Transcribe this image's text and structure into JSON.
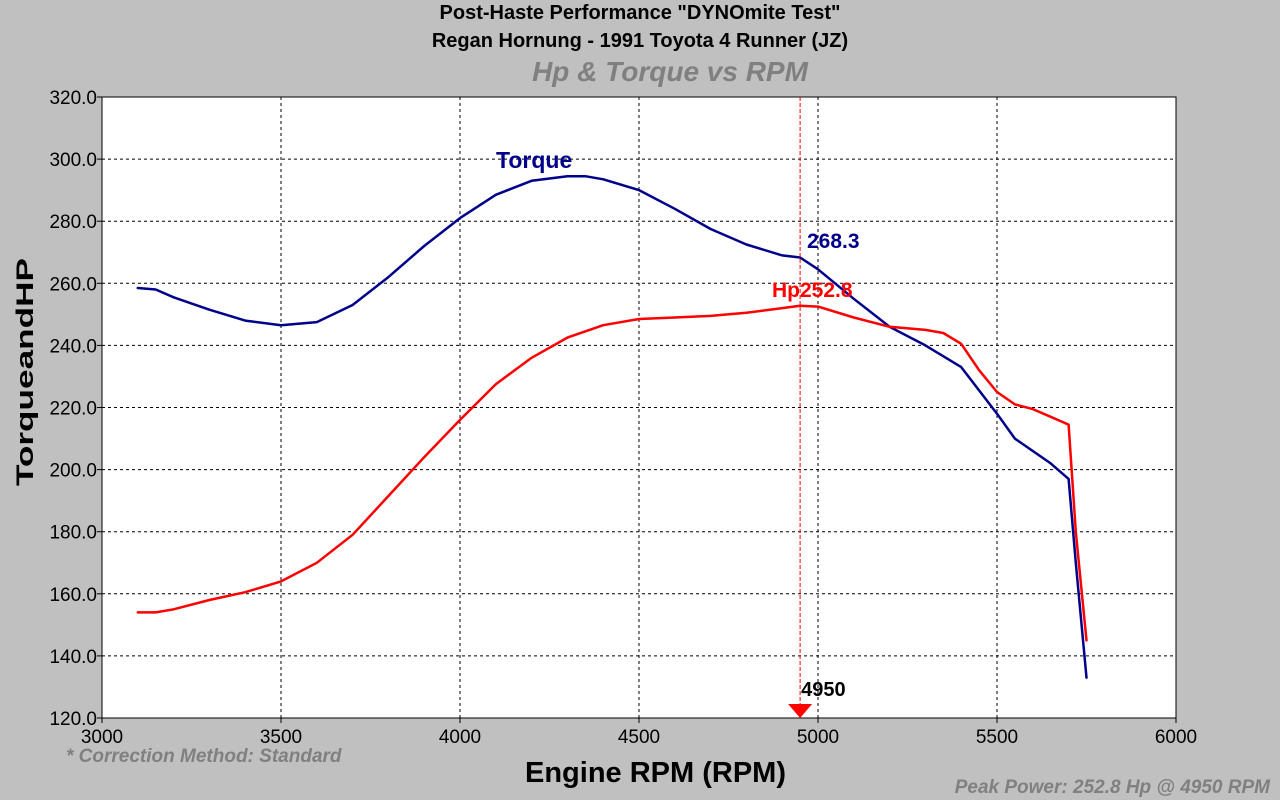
{
  "header": {
    "title": "Post-Haste Performance \"DYNOmite Test\"",
    "subtitle_line": "Regan Hornung - 1991 Toyota 4 Runner (JZ)",
    "chart_title": "Hp & Torque vs RPM"
  },
  "footer": {
    "correction": "* Correction Method: Standard",
    "peak": "Peak Power: 252.8 Hp @ 4950 RPM"
  },
  "colors": {
    "torque": "#00008b",
    "hp": "#ff0000",
    "marker": "#ff0000",
    "grid": "#000000",
    "plot_bg": "#ffffff",
    "page_bg": "#c0c0c0"
  },
  "chart_data": {
    "type": "line",
    "xlabel": "Engine RPM (RPM)",
    "ylabel": "TorqueandHP",
    "xlim": [
      3000,
      6000
    ],
    "ylim": [
      120,
      320
    ],
    "xticks": [
      "3000",
      "3500",
      "4000",
      "4500",
      "5000",
      "5500",
      "6000"
    ],
    "yticks": [
      "120.0",
      "140.0",
      "160.0",
      "180.0",
      "200.0",
      "220.0",
      "240.0",
      "260.0",
      "280.0",
      "300.0",
      "320.0"
    ],
    "grid": true,
    "series": [
      {
        "name": "Torque",
        "label": "Torque",
        "x": [
          3100,
          3150,
          3200,
          3300,
          3400,
          3500,
          3600,
          3700,
          3800,
          3900,
          4000,
          4100,
          4200,
          4300,
          4350,
          4400,
          4500,
          4600,
          4700,
          4800,
          4900,
          4950,
          5000,
          5100,
          5200,
          5300,
          5400,
          5500,
          5550,
          5600,
          5650,
          5700,
          5720,
          5750
        ],
        "y": [
          258.5,
          258,
          255.5,
          251.5,
          248,
          246.5,
          247.5,
          253,
          262,
          272,
          281,
          288.5,
          293,
          294.5,
          294.5,
          293.5,
          290,
          284,
          277.5,
          272.5,
          269,
          268.3,
          264.5,
          255,
          246,
          240,
          233,
          218,
          210,
          206,
          202,
          197,
          170,
          133
        ]
      },
      {
        "name": "Hp",
        "label": "Hp252.8",
        "x": [
          3100,
          3150,
          3200,
          3300,
          3400,
          3500,
          3600,
          3700,
          3800,
          3900,
          4000,
          4100,
          4200,
          4300,
          4400,
          4500,
          4600,
          4700,
          4800,
          4900,
          4950,
          5000,
          5100,
          5200,
          5300,
          5350,
          5400,
          5450,
          5500,
          5550,
          5600,
          5650,
          5700,
          5720,
          5750
        ],
        "y": [
          154,
          154,
          155,
          158,
          160.5,
          164,
          170,
          179,
          191.5,
          204,
          216,
          227.5,
          236,
          242.5,
          246.5,
          248.5,
          249,
          249.5,
          250.5,
          252,
          252.8,
          252.5,
          249,
          246,
          245,
          244,
          240.5,
          232,
          225,
          221,
          219.5,
          217,
          214.5,
          180,
          145
        ]
      }
    ],
    "annotations": {
      "cursor_rpm": 4950,
      "cursor_label": "4950",
      "torque_at_cursor": "268.3",
      "hp_at_cursor_label": "Hp252.8"
    }
  }
}
